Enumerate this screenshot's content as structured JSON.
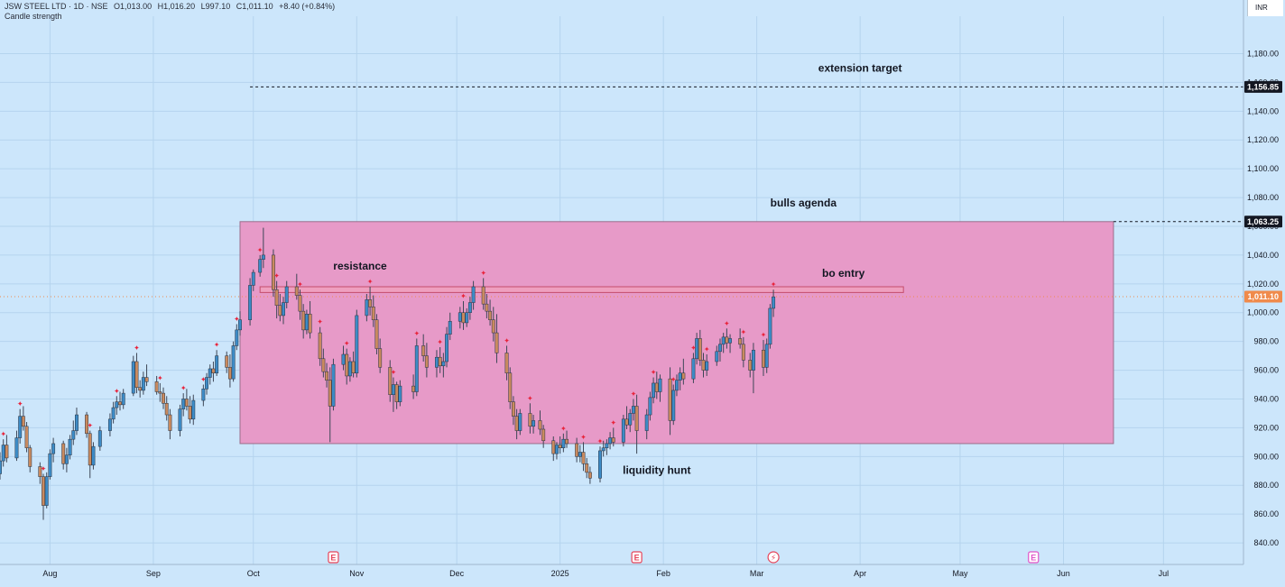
{
  "legend": {
    "symbol": "JSW STEEL LTD · 1D · NSE",
    "open": "O1,013.00",
    "high": "H1,016.20",
    "low": "L997.10",
    "close": "C1,011.10",
    "change": "+8.40 (+0.84%)",
    "indicator": "Candle strength"
  },
  "currency": "INR",
  "colors": {
    "background": "#cce6fb",
    "grid": "#b5d4ee",
    "up_candle": "#3d8bc6",
    "down_candle": "#c98a5f",
    "zone_fill": "#e79ac8",
    "zone_border": "#9b6e8a",
    "resistance_fill": "#ef9fbf",
    "resistance_border": "#c44d6d",
    "signal_dot": "#e8243c",
    "current_price": "#f08a4b",
    "event_icon": "#e5445a",
    "event_icon_future": "#e054c8"
  },
  "chart_data": {
    "type": "candlestick",
    "y_axis": {
      "ticks": [
        "1,180.00",
        "1,160.00",
        "1,140.00",
        "1,120.00",
        "1,100.00",
        "1,080.00",
        "1,060.00",
        "1,040.00",
        "1,020.00",
        "1,000.00",
        "980.00",
        "960.00",
        "940.00",
        "920.00",
        "900.00",
        "880.00",
        "860.00",
        "840.00"
      ],
      "tick_values": [
        1180,
        1160,
        1140,
        1120,
        1100,
        1080,
        1060,
        1040,
        1020,
        1000,
        980,
        960,
        940,
        920,
        900,
        880,
        860,
        840
      ],
      "range": [
        825,
        1206
      ]
    },
    "x_axis": {
      "labels": [
        "Aug",
        "Sep",
        "Oct",
        "Nov",
        "Dec",
        "2025",
        "Feb",
        "Mar",
        "Apr",
        "May",
        "Jun",
        "Jul"
      ],
      "label_dates": [
        "2024-08-01",
        "2024-09-01",
        "2024-10-01",
        "2024-11-01",
        "2024-12-01",
        "2025-01-01",
        "2025-02-01",
        "2025-03-01",
        "2025-04-01",
        "2025-05-01",
        "2025-06-01",
        "2025-07-01"
      ],
      "range": [
        "2024-07-17",
        "2025-07-25"
      ]
    },
    "price_tags": [
      {
        "value": 1156.85,
        "label": "1,156.85",
        "style": "black"
      },
      {
        "value": 1063.25,
        "label": "1,063.25",
        "style": "black"
      },
      {
        "value": 1011.1,
        "label": "1,011.10",
        "style": "current"
      }
    ],
    "lines": [
      {
        "value": 1156.85,
        "from": "2024-09-30",
        "to": "2025-07-25",
        "style": "dashed",
        "label": "extension target",
        "label_date": "2025-04-01"
      },
      {
        "value": 1063.25,
        "from": "2025-06-16",
        "to": "2025-07-25",
        "style": "dashed",
        "label": "bulls agenda",
        "label_date": "2025-03-15"
      }
    ],
    "zone": {
      "from": "2024-09-27",
      "to": "2025-06-16",
      "low": 909,
      "high": 1063.25
    },
    "resistance_band": {
      "from": "2024-10-03",
      "to": "2025-04-14",
      "low": 1014,
      "high": 1018
    },
    "annotations": [
      {
        "text": "resistance",
        "date": "2024-11-02",
        "value": 1030
      },
      {
        "text": "bo entry",
        "date": "2025-03-27",
        "value": 1025
      },
      {
        "text": "liquidity hunt",
        "date": "2025-01-30",
        "value": 888
      }
    ],
    "event_markers": [
      {
        "date": "2024-10-25",
        "type": "earnings",
        "label": "E"
      },
      {
        "date": "2025-01-24",
        "type": "earnings",
        "label": "E"
      },
      {
        "date": "2025-03-06",
        "type": "split",
        "label": "⚡"
      },
      {
        "date": "2025-05-23",
        "type": "earnings-future",
        "label": "E"
      }
    ],
    "signals_dates_high": [
      "2024-07-18",
      "2024-07-23",
      "2024-07-30",
      "2024-08-13",
      "2024-08-21",
      "2024-08-27",
      "2024-09-03",
      "2024-09-10",
      "2024-09-16",
      "2024-09-20",
      "2024-09-26",
      "2024-10-03",
      "2024-10-08",
      "2024-10-15",
      "2024-10-21",
      "2024-10-29",
      "2024-11-05",
      "2024-11-12",
      "2024-11-19",
      "2024-11-26",
      "2024-12-03",
      "2024-12-09",
      "2024-12-16",
      "2024-12-23",
      "2025-01-02",
      "2025-01-08",
      "2025-01-13",
      "2025-01-17",
      "2025-01-23",
      "2025-01-29",
      "2025-02-04",
      "2025-02-10",
      "2025-02-14",
      "2025-02-20",
      "2025-02-25",
      "2025-03-03",
      "2025-03-06"
    ],
    "candles": [
      [
        "2024-07-17",
        888,
        903,
        884,
        897
      ],
      [
        "2024-07-18",
        897,
        912,
        893,
        908
      ],
      [
        "2024-07-19",
        908,
        915,
        896,
        899
      ],
      [
        "2024-07-22",
        899,
        918,
        897,
        913
      ],
      [
        "2024-07-23",
        913,
        933,
        909,
        928
      ],
      [
        "2024-07-24",
        928,
        935,
        918,
        921
      ],
      [
        "2024-07-25",
        921,
        924,
        903,
        906
      ],
      [
        "2024-07-26",
        906,
        908,
        889,
        893
      ],
      [
        "2024-07-29",
        893,
        896,
        881,
        886
      ],
      [
        "2024-07-30",
        886,
        888,
        856,
        866
      ],
      [
        "2024-07-31",
        866,
        889,
        864,
        886
      ],
      [
        "2024-08-01",
        886,
        905,
        884,
        902
      ],
      [
        "2024-08-02",
        902,
        913,
        896,
        909
      ],
      [
        "2024-08-05",
        909,
        911,
        891,
        895
      ],
      [
        "2024-08-06",
        895,
        906,
        889,
        901
      ],
      [
        "2024-08-07",
        901,
        915,
        898,
        912
      ],
      [
        "2024-08-08",
        912,
        925,
        908,
        918
      ],
      [
        "2024-08-09",
        918,
        934,
        915,
        929
      ],
      [
        "2024-08-12",
        929,
        931,
        913,
        916
      ],
      [
        "2024-08-13",
        916,
        918,
        885,
        894
      ],
      [
        "2024-08-14",
        894,
        910,
        891,
        907
      ],
      [
        "2024-08-16",
        907,
        921,
        904,
        918
      ],
      [
        "2024-08-19",
        918,
        930,
        914,
        926
      ],
      [
        "2024-08-20",
        926,
        938,
        923,
        934
      ],
      [
        "2024-08-21",
        934,
        942,
        929,
        938
      ],
      [
        "2024-08-22",
        938,
        945,
        932,
        936
      ],
      [
        "2024-08-23",
        936,
        947,
        933,
        944
      ],
      [
        "2024-08-26",
        944,
        970,
        942,
        966
      ],
      [
        "2024-08-27",
        966,
        972,
        944,
        948
      ],
      [
        "2024-08-28",
        948,
        953,
        941,
        946
      ],
      [
        "2024-08-29",
        946,
        959,
        943,
        955
      ],
      [
        "2024-08-30",
        955,
        964,
        949,
        952
      ],
      [
        "2024-09-02",
        952,
        956,
        943,
        945
      ],
      [
        "2024-09-03",
        945,
        951,
        938,
        944
      ],
      [
        "2024-09-04",
        944,
        948,
        933,
        937
      ],
      [
        "2024-09-05",
        937,
        942,
        925,
        929
      ],
      [
        "2024-09-06",
        929,
        933,
        912,
        918
      ],
      [
        "2024-09-09",
        918,
        936,
        914,
        933
      ],
      [
        "2024-09-10",
        933,
        944,
        928,
        940
      ],
      [
        "2024-09-11",
        940,
        947,
        932,
        935
      ],
      [
        "2024-09-12",
        935,
        942,
        923,
        926
      ],
      [
        "2024-09-13",
        926,
        943,
        922,
        939
      ],
      [
        "2024-09-16",
        939,
        950,
        935,
        947
      ],
      [
        "2024-09-17",
        947,
        958,
        943,
        955
      ],
      [
        "2024-09-18",
        955,
        964,
        950,
        961
      ],
      [
        "2024-09-19",
        961,
        966,
        952,
        958
      ],
      [
        "2024-09-20",
        958,
        974,
        956,
        970
      ],
      [
        "2024-09-23",
        970,
        973,
        958,
        962
      ],
      [
        "2024-09-24",
        962,
        971,
        948,
        954
      ],
      [
        "2024-09-25",
        954,
        980,
        952,
        977
      ],
      [
        "2024-09-26",
        977,
        992,
        974,
        988
      ],
      [
        "2024-09-27",
        988,
        1001,
        984,
        995
      ],
      [
        "2024-09-30",
        995,
        1024,
        991,
        1019
      ],
      [
        "2024-10-01",
        1019,
        1030,
        1015,
        1028
      ],
      [
        "2024-10-03",
        1028,
        1040,
        1025,
        1037
      ],
      [
        "2024-10-04",
        1037,
        1059,
        1031,
        1040
      ],
      [
        "2024-10-07",
        1040,
        1044,
        1011,
        1016
      ],
      [
        "2024-10-08",
        1016,
        1022,
        996,
        1005
      ],
      [
        "2024-10-09",
        1005,
        1013,
        994,
        998
      ],
      [
        "2024-10-10",
        998,
        1011,
        992,
        1007
      ],
      [
        "2024-10-11",
        1007,
        1022,
        1003,
        1018
      ],
      [
        "2024-10-14",
        1018,
        1027,
        1009,
        1012
      ],
      [
        "2024-10-15",
        1012,
        1016,
        995,
        1001
      ],
      [
        "2024-10-16",
        1001,
        1006,
        982,
        988
      ],
      [
        "2024-10-17",
        988,
        1002,
        985,
        999
      ],
      [
        "2024-10-18",
        999,
        1008,
        982,
        986
      ],
      [
        "2024-10-21",
        986,
        990,
        963,
        968
      ],
      [
        "2024-10-22",
        968,
        975,
        955,
        959
      ],
      [
        "2024-10-23",
        959,
        965,
        948,
        953
      ],
      [
        "2024-10-24",
        953,
        962,
        910,
        935
      ],
      [
        "2024-10-25",
        935,
        968,
        932,
        964
      ],
      [
        "2024-10-28",
        964,
        977,
        960,
        971
      ],
      [
        "2024-10-29",
        971,
        975,
        950,
        956
      ],
      [
        "2024-10-30",
        956,
        969,
        952,
        966
      ],
      [
        "2024-10-31",
        966,
        973,
        955,
        958
      ],
      [
        "2024-11-01",
        958,
        1002,
        955,
        998
      ],
      [
        "2024-11-04",
        998,
        1013,
        994,
        1009
      ],
      [
        "2024-11-05",
        1009,
        1018,
        998,
        1004
      ],
      [
        "2024-11-06",
        1004,
        1012,
        990,
        995
      ],
      [
        "2024-11-07",
        995,
        999,
        971,
        975
      ],
      [
        "2024-11-08",
        975,
        982,
        958,
        962
      ],
      [
        "2024-11-11",
        962,
        967,
        938,
        943
      ],
      [
        "2024-11-12",
        943,
        955,
        931,
        950
      ],
      [
        "2024-11-13",
        950,
        952,
        933,
        938
      ],
      [
        "2024-11-14",
        938,
        953,
        935,
        949
      ],
      [
        "2024-11-18",
        949,
        957,
        940,
        945
      ],
      [
        "2024-11-19",
        945,
        982,
        942,
        977
      ],
      [
        "2024-11-21",
        977,
        985,
        966,
        970
      ],
      [
        "2024-11-22",
        970,
        979,
        955,
        962
      ],
      [
        "2024-11-25",
        962,
        974,
        955,
        969
      ],
      [
        "2024-11-26",
        969,
        976,
        958,
        963
      ],
      [
        "2024-11-27",
        963,
        972,
        955,
        966
      ],
      [
        "2024-11-28",
        966,
        990,
        962,
        985
      ],
      [
        "2024-11-29",
        985,
        1000,
        981,
        994
      ],
      [
        "2024-12-02",
        994,
        1004,
        989,
        1000
      ],
      [
        "2024-12-03",
        1000,
        1008,
        988,
        993
      ],
      [
        "2024-12-04",
        993,
        1003,
        990,
        1000
      ],
      [
        "2024-12-05",
        1000,
        1011,
        995,
        1007
      ],
      [
        "2024-12-06",
        1007,
        1022,
        1002,
        1018
      ],
      [
        "2024-12-09",
        1018,
        1024,
        1002,
        1006
      ],
      [
        "2024-12-10",
        1006,
        1013,
        996,
        1001
      ],
      [
        "2024-12-11",
        1001,
        1009,
        991,
        995
      ],
      [
        "2024-12-12",
        995,
        1004,
        980,
        986
      ],
      [
        "2024-12-13",
        986,
        999,
        965,
        972
      ],
      [
        "2024-12-16",
        972,
        977,
        953,
        958
      ],
      [
        "2024-12-17",
        958,
        962,
        933,
        938
      ],
      [
        "2024-12-18",
        938,
        942,
        922,
        928
      ],
      [
        "2024-12-19",
        928,
        933,
        912,
        918
      ],
      [
        "2024-12-20",
        918,
        933,
        915,
        930
      ],
      [
        "2024-12-23",
        930,
        937,
        916,
        921
      ],
      [
        "2024-12-24",
        921,
        929,
        916,
        925
      ],
      [
        "2024-12-26",
        925,
        932,
        915,
        919
      ],
      [
        "2024-12-27",
        919,
        922,
        906,
        911
      ],
      [
        "2024-12-30",
        911,
        914,
        897,
        902
      ],
      [
        "2024-12-31",
        902,
        910,
        898,
        908
      ],
      [
        "2025-01-01",
        908,
        914,
        902,
        906
      ],
      [
        "2025-01-02",
        906,
        916,
        903,
        912
      ],
      [
        "2025-01-03",
        912,
        918,
        906,
        909
      ],
      [
        "2025-01-06",
        909,
        913,
        896,
        900
      ],
      [
        "2025-01-07",
        900,
        908,
        896,
        903
      ],
      [
        "2025-01-08",
        903,
        910,
        890,
        895
      ],
      [
        "2025-01-09",
        895,
        899,
        885,
        889
      ],
      [
        "2025-01-10",
        889,
        893,
        881,
        885
      ],
      [
        "2025-01-13",
        885,
        907,
        882,
        904
      ],
      [
        "2025-01-14",
        904,
        911,
        900,
        906
      ],
      [
        "2025-01-15",
        906,
        912,
        901,
        909
      ],
      [
        "2025-01-16",
        909,
        917,
        905,
        913
      ],
      [
        "2025-01-17",
        913,
        920,
        907,
        910
      ],
      [
        "2025-01-20",
        910,
        929,
        907,
        926
      ],
      [
        "2025-01-21",
        926,
        935,
        919,
        922
      ],
      [
        "2025-01-22",
        922,
        933,
        917,
        930
      ],
      [
        "2025-01-23",
        930,
        940,
        925,
        935
      ],
      [
        "2025-01-24",
        935,
        943,
        902,
        918
      ],
      [
        "2025-01-27",
        918,
        933,
        912,
        929
      ],
      [
        "2025-01-28",
        929,
        945,
        925,
        941
      ],
      [
        "2025-01-29",
        941,
        955,
        937,
        951
      ],
      [
        "2025-01-30",
        951,
        959,
        940,
        945
      ],
      [
        "2025-01-31",
        945,
        957,
        938,
        954
      ],
      [
        "2025-02-03",
        954,
        962,
        915,
        925
      ],
      [
        "2025-02-04",
        925,
        950,
        922,
        946
      ],
      [
        "2025-02-05",
        946,
        957,
        942,
        953
      ],
      [
        "2025-02-06",
        953,
        962,
        946,
        958
      ],
      [
        "2025-02-07",
        958,
        968,
        950,
        954
      ],
      [
        "2025-02-10",
        954,
        972,
        951,
        968
      ],
      [
        "2025-02-11",
        968,
        986,
        964,
        982
      ],
      [
        "2025-02-12",
        982,
        988,
        963,
        967
      ],
      [
        "2025-02-13",
        967,
        972,
        955,
        960
      ],
      [
        "2025-02-14",
        960,
        971,
        956,
        966
      ],
      [
        "2025-02-17",
        966,
        977,
        963,
        973
      ],
      [
        "2025-02-18",
        973,
        982,
        966,
        978
      ],
      [
        "2025-02-19",
        978,
        986,
        972,
        983
      ],
      [
        "2025-02-20",
        983,
        989,
        975,
        979
      ],
      [
        "2025-02-21",
        979,
        985,
        972,
        982
      ],
      [
        "2025-02-24",
        982,
        989,
        975,
        978
      ],
      [
        "2025-02-25",
        978,
        983,
        962,
        967
      ],
      [
        "2025-02-27",
        967,
        972,
        955,
        960
      ],
      [
        "2025-02-28",
        960,
        979,
        944,
        974
      ],
      [
        "2025-03-03",
        974,
        981,
        956,
        962
      ],
      [
        "2025-03-04",
        962,
        982,
        958,
        978
      ],
      [
        "2025-03-05",
        978,
        1006,
        975,
        1003
      ],
      [
        "2025-03-06",
        1003,
        1016,
        997,
        1011
      ]
    ]
  }
}
